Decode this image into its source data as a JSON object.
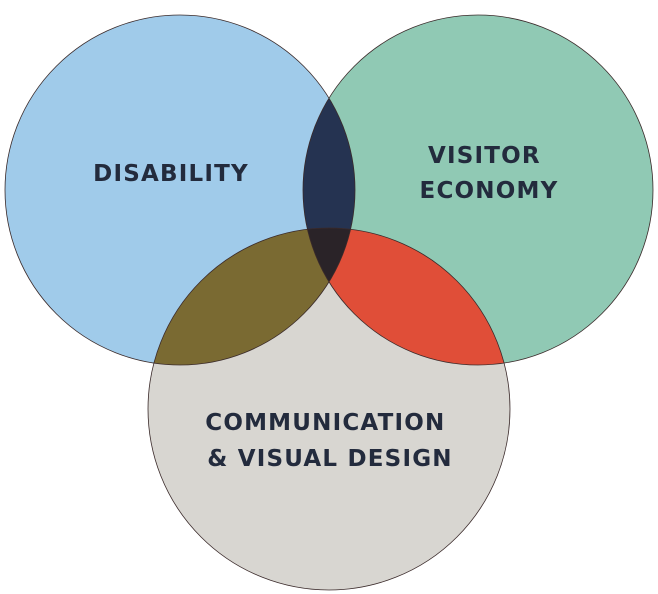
{
  "diagram": {
    "type": "venn",
    "sets": [
      {
        "id": "disability",
        "label_lines": [
          "DISABILITY"
        ],
        "color": "#a0cbea"
      },
      {
        "id": "visitor-economy",
        "label_lines": [
          "VISITOR",
          "ECONOMY"
        ],
        "color": "#90c9b4"
      },
      {
        "id": "communication",
        "label_lines": [
          "COMMUNICATION",
          "& VISUAL DESIGN"
        ],
        "color": "#d8d6d1"
      }
    ],
    "intersections": {
      "disability_visitor": "#253351",
      "disability_communication": "#7a6a32",
      "visitor_communication": "#e04e38",
      "all": "#2a2328"
    },
    "label_color": "#232b3d"
  }
}
